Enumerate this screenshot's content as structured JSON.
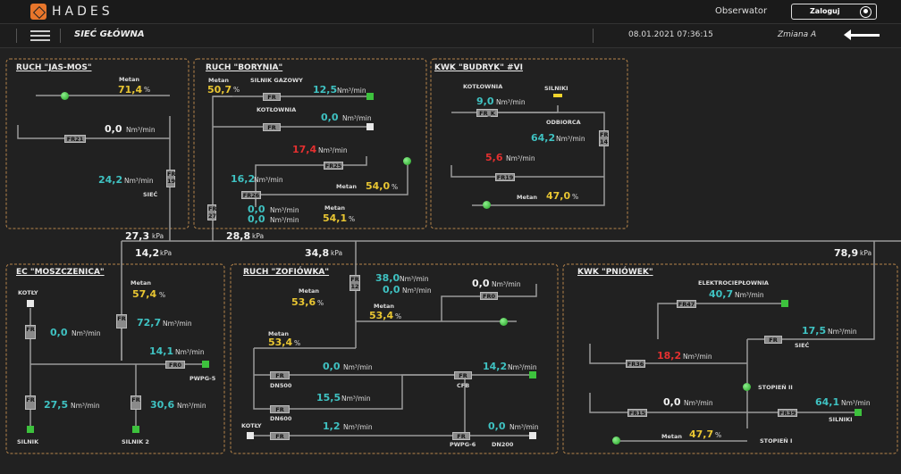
{
  "app": {
    "brand": "HADES",
    "observer": "Obserwator",
    "login": "Zaloguj"
  },
  "header": {
    "title": "SIEĆ GŁÓWNA",
    "datetime": "08.01.2021 07:36:15",
    "shift": "Zmiana A"
  },
  "units": {
    "flow": "Nm³/min",
    "pct": "%",
    "kpa": "kPa"
  },
  "common": {
    "methane": "Metan",
    "fr": "FR"
  },
  "main_pressures": {
    "p1": "27,3",
    "p2": "28,8",
    "p3": "14,2",
    "p4": "34,8",
    "p5": "78,9"
  },
  "jasmos": {
    "title": "RUCH \"JAS-MOS\"",
    "methane": "71,4",
    "flow_fr21": "0,0",
    "fr21": "FR21",
    "flow_fr19": "24,2",
    "fr19": "FR\n19",
    "net": "SIEĆ"
  },
  "borynia": {
    "title": "RUCH \"BORYNIA\"",
    "methane1": "50,7",
    "engine": "SILNIK GAZOWY",
    "flow_engine": "12,5",
    "boiler": "KOTŁOWNIA",
    "flow_boiler": "0,0",
    "flow_fr25": "17,4",
    "fr25": "FR25",
    "flow_fr26": "16,2",
    "fr26": "FR26",
    "methane2": "54,0",
    "flow_a": "0,0",
    "flow_b": "0,0",
    "methane3": "54,1",
    "fr27": "FR\n27"
  },
  "budryk": {
    "title": "KWK \"BUDRYK\" #VI",
    "boiler": "KOTŁOWNIA",
    "flow_boiler": "9,0",
    "engines": "SILNIKI",
    "fr_k": "FR_K",
    "receiver": "ODBIORCA",
    "flow_receiver": "64,2",
    "fr14": "FR\n14",
    "flow_fr19": "5,6",
    "fr19": "FR19",
    "methane": "47,0"
  },
  "moszczenica": {
    "title": "EC \"MOSZCZENICA\"",
    "boilers": "KOTŁY",
    "methane": "57,4",
    "flow_boilers": "0,0",
    "flow_mid": "72,7",
    "flow_pwpg": "14,1",
    "fr0": "FR0",
    "pwpg": "PWPG-5",
    "flow_engine": "27,5",
    "flow_engine2": "30,6",
    "engine": "SILNIK",
    "engine2": "SILNIK 2"
  },
  "zofiowka": {
    "title": "RUCH \"ZOFIÓWKA\"",
    "fr12": "FR\n12",
    "flow_a": "38,0",
    "flow_b": "0,0",
    "flow_fr0": "0,0",
    "fr0": "FR0",
    "methane1": "53,6",
    "methane2": "53,4",
    "methane3": "53,4",
    "flow_dn500": "0,0",
    "dn500": "DN500",
    "flow_cfb": "14,2",
    "cfb": "CFB",
    "flow_dn600": "15,5",
    "dn600": "DN600",
    "boilers": "KOTŁY",
    "flow_boilers": "1,2",
    "flow_dn200": "0,0",
    "dn200": "DN200",
    "pwpg": "PWPG-6"
  },
  "pniowek": {
    "title": "KWK \"PNIÓWEK\"",
    "power_plant": "ELEKTROCIEPŁOWNIA",
    "flow_power": "40,7",
    "fr47": "FR47",
    "flow_net": "17,5",
    "net": "SIEĆ",
    "flow_fr36": "18,2",
    "fr36": "FR36",
    "stage2": "STOPIEŃ II",
    "flow_fr15": "0,0",
    "fr15": "FR15",
    "flow_fr39": "64,1",
    "fr39": "FR39",
    "engines": "SILNIKI",
    "methane": "47,7",
    "stage1": "STOPIEŃ I"
  }
}
